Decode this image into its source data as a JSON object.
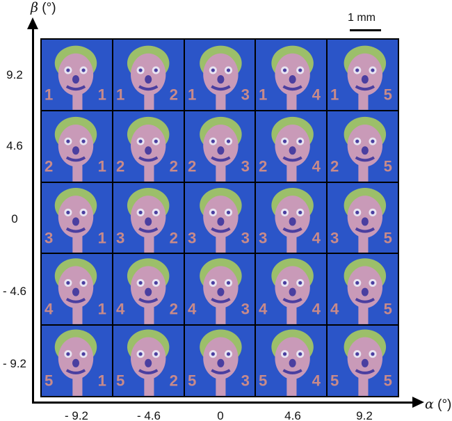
{
  "axes": {
    "y_title_symbol": "β",
    "y_title_unit": " (°)",
    "x_title_symbol": "α",
    "x_title_unit": " (°)",
    "y_ticks": [
      "9.2",
      "4.6",
      "0",
      "- 4.6",
      "- 9.2"
    ],
    "x_ticks": [
      "- 9.2",
      "- 4.6",
      "0",
      "4.6",
      "9.2"
    ]
  },
  "scale_bar": {
    "label": "1 mm"
  },
  "grid": {
    "rows": 5,
    "cols": 5,
    "row_digits": [
      "1",
      "2",
      "3",
      "4",
      "5"
    ],
    "col_digits": [
      "1",
      "2",
      "3",
      "4",
      "5"
    ],
    "colors": {
      "background": "#2b55c8",
      "face": "#c99ab8",
      "hair": "#9cbf6a",
      "features": "#4a3fa0",
      "digits": "#c88a8a"
    }
  }
}
